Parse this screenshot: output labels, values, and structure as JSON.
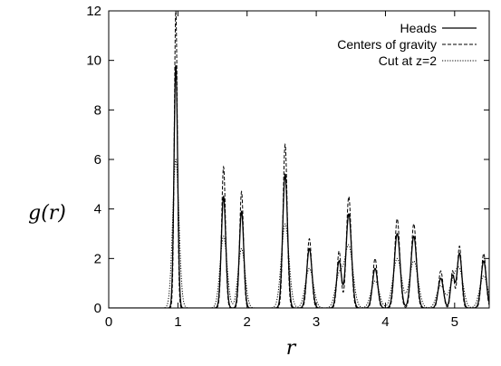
{
  "chart_data": {
    "type": "line",
    "title": "",
    "xlabel": "r",
    "ylabel": "g(r)",
    "xlim": [
      0,
      5.5
    ],
    "ylim": [
      0,
      12
    ],
    "x_ticks": [
      "0",
      "1",
      "2",
      "3",
      "4",
      "5"
    ],
    "y_ticks": [
      "0",
      "2",
      "4",
      "6",
      "8",
      "10",
      "12"
    ],
    "grid": false,
    "legend_position": "top-right",
    "series": [
      {
        "name": "Heads",
        "style": "solid",
        "peaks": [
          {
            "r": 0.97,
            "g": 9.8,
            "w": 0.026
          },
          {
            "r": 1.66,
            "g": 4.5,
            "w": 0.032
          },
          {
            "r": 1.92,
            "g": 3.9,
            "w": 0.032
          },
          {
            "r": 2.55,
            "g": 5.4,
            "w": 0.035
          },
          {
            "r": 2.9,
            "g": 2.4,
            "w": 0.038
          },
          {
            "r": 3.33,
            "g": 1.9,
            "w": 0.035
          },
          {
            "r": 3.47,
            "g": 3.8,
            "w": 0.04
          },
          {
            "r": 3.85,
            "g": 1.6,
            "w": 0.038
          },
          {
            "r": 4.17,
            "g": 3.0,
            "w": 0.042
          },
          {
            "r": 4.41,
            "g": 2.9,
            "w": 0.042
          },
          {
            "r": 4.8,
            "g": 1.2,
            "w": 0.038
          },
          {
            "r": 4.97,
            "g": 1.3,
            "w": 0.03
          },
          {
            "r": 5.07,
            "g": 2.2,
            "w": 0.035
          },
          {
            "r": 5.42,
            "g": 1.9,
            "w": 0.038
          }
        ]
      },
      {
        "name": "Centers of gravity",
        "style": "dashed",
        "peaks": [
          {
            "r": 0.97,
            "g": 12.0,
            "w": 0.022
          },
          {
            "r": 1.66,
            "g": 5.7,
            "w": 0.028
          },
          {
            "r": 1.92,
            "g": 4.7,
            "w": 0.028
          },
          {
            "r": 2.55,
            "g": 6.6,
            "w": 0.03
          },
          {
            "r": 2.9,
            "g": 2.8,
            "w": 0.033
          },
          {
            "r": 3.33,
            "g": 2.3,
            "w": 0.03
          },
          {
            "r": 3.47,
            "g": 4.5,
            "w": 0.035
          },
          {
            "r": 3.85,
            "g": 2.0,
            "w": 0.033
          },
          {
            "r": 4.17,
            "g": 3.6,
            "w": 0.037
          },
          {
            "r": 4.41,
            "g": 3.4,
            "w": 0.037
          },
          {
            "r": 4.8,
            "g": 1.5,
            "w": 0.033
          },
          {
            "r": 4.97,
            "g": 1.5,
            "w": 0.026
          },
          {
            "r": 5.07,
            "g": 2.5,
            "w": 0.03
          },
          {
            "r": 5.42,
            "g": 2.2,
            "w": 0.033
          }
        ]
      },
      {
        "name": "Cut at z=2",
        "style": "dotted",
        "peaks": [
          {
            "r": 0.97,
            "g": 6.0,
            "w": 0.045
          },
          {
            "r": 1.66,
            "g": 2.9,
            "w": 0.05
          },
          {
            "r": 1.92,
            "g": 2.4,
            "w": 0.05
          },
          {
            "r": 2.55,
            "g": 3.4,
            "w": 0.055
          },
          {
            "r": 2.9,
            "g": 1.6,
            "w": 0.058
          },
          {
            "r": 3.33,
            "g": 1.3,
            "w": 0.055
          },
          {
            "r": 3.47,
            "g": 2.5,
            "w": 0.06
          },
          {
            "r": 3.85,
            "g": 1.1,
            "w": 0.058
          },
          {
            "r": 4.17,
            "g": 2.0,
            "w": 0.062
          },
          {
            "r": 4.41,
            "g": 1.9,
            "w": 0.062
          },
          {
            "r": 4.8,
            "g": 0.9,
            "w": 0.058
          },
          {
            "r": 4.97,
            "g": 0.9,
            "w": 0.05
          },
          {
            "r": 5.07,
            "g": 1.5,
            "w": 0.055
          },
          {
            "r": 5.42,
            "g": 1.3,
            "w": 0.058
          }
        ]
      }
    ]
  }
}
